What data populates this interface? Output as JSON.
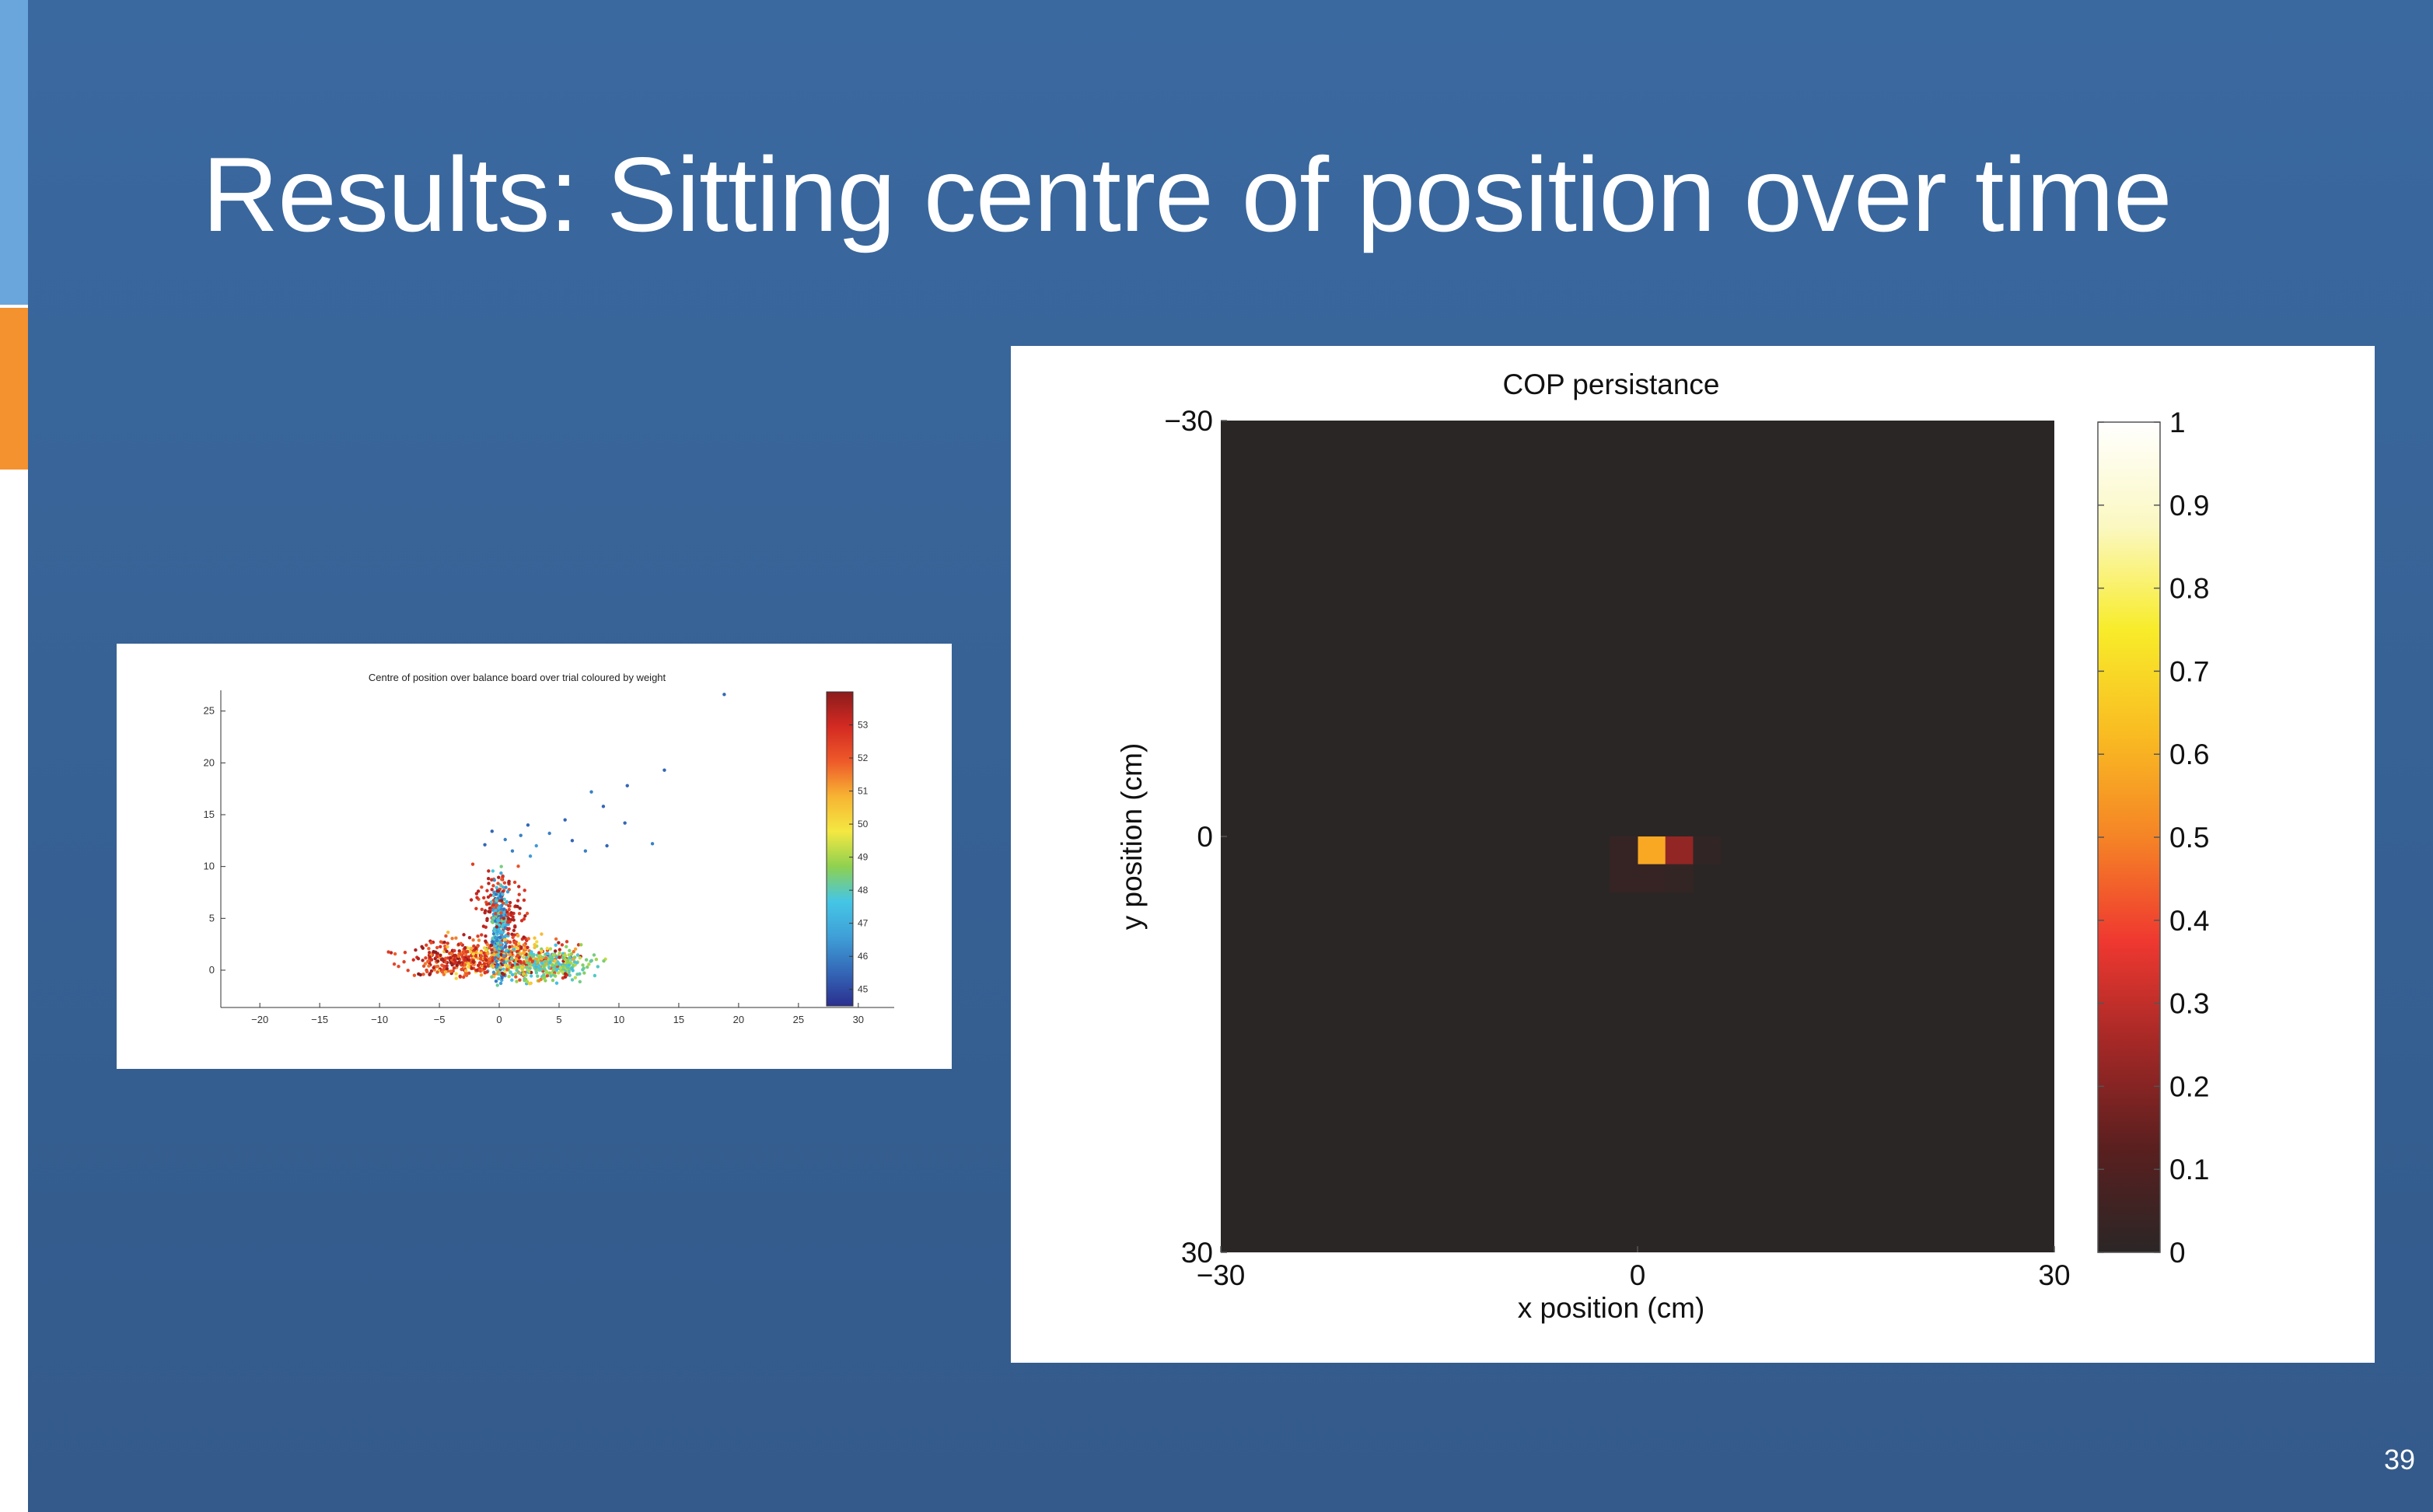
{
  "slide": {
    "title": "Results: Sitting centre of position over time",
    "page_number": "39",
    "colors": {
      "background": "#365f93",
      "accent_blue": "#6aa6dc",
      "accent_orange": "#f3922f",
      "text": "#ffffff"
    }
  },
  "chart_data": [
    {
      "type": "scatter",
      "title": "Centre of position over balance board over trial coloured by weight",
      "xlabel": "",
      "ylabel": "",
      "xlim": [
        -23,
        33
      ],
      "ylim": [
        -3,
        27
      ],
      "x_ticks": [
        "−20",
        "−15",
        "−10",
        "−5",
        "0",
        "5",
        "10",
        "15",
        "20",
        "25",
        "30"
      ],
      "y_ticks": [
        "0",
        "5",
        "10",
        "15",
        "20",
        "25"
      ],
      "colorbar": {
        "range": [
          44.5,
          54
        ],
        "ticks": [
          "45",
          "46",
          "47",
          "48",
          "49",
          "50",
          "51",
          "52",
          "53"
        ],
        "colormap": "jet"
      },
      "colormap_colors": [
        "#2b2f8f",
        "#3469b8",
        "#3fa0d8",
        "#45c6e6",
        "#8fd14f",
        "#f4e842",
        "#f7b433",
        "#ee5a2a",
        "#d42a22",
        "#8b1c1c"
      ],
      "points": [
        {
          "x": 18.8,
          "y": 26.6,
          "c": 45.5
        },
        {
          "x": 13.8,
          "y": 19.3,
          "c": 45.5
        },
        {
          "x": 10.7,
          "y": 17.8,
          "c": 45.5
        },
        {
          "x": 12.8,
          "y": 12.2,
          "c": 46
        },
        {
          "x": 10.5,
          "y": 14.2,
          "c": 45.5
        },
        {
          "x": 8.7,
          "y": 15.8,
          "c": 45.5
        },
        {
          "x": 7.7,
          "y": 17.2,
          "c": 46
        },
        {
          "x": 5.5,
          "y": 14.5,
          "c": 45.5
        },
        {
          "x": 4.2,
          "y": 13.2,
          "c": 46
        },
        {
          "x": 6.1,
          "y": 12.5,
          "c": 45.5
        },
        {
          "x": 2.4,
          "y": 14.0,
          "c": 45.5
        },
        {
          "x": 1.8,
          "y": 13.0,
          "c": 46
        },
        {
          "x": 3.1,
          "y": 12.0,
          "c": 46.5
        },
        {
          "x": -0.6,
          "y": 13.4,
          "c": 45.5
        },
        {
          "x": 0.5,
          "y": 12.6,
          "c": 46
        },
        {
          "x": -1.2,
          "y": 12.1,
          "c": 45.5
        },
        {
          "x": 1.1,
          "y": 11.5,
          "c": 46
        },
        {
          "x": 2.6,
          "y": 11.0,
          "c": 46.5
        },
        {
          "x": 9.0,
          "y": 12.0,
          "c": 45.5
        },
        {
          "x": 7.2,
          "y": 11.5,
          "c": 46
        }
      ]
    },
    {
      "type": "heatmap",
      "title": "COP persistance",
      "xlabel": "x position (cm)",
      "ylabel": "y position (cm)",
      "xlim": [
        -30,
        30
      ],
      "ylim": [
        -30,
        30
      ],
      "x_ticks": [
        "−30",
        "0",
        "30"
      ],
      "y_ticks": [
        "−30",
        "0",
        "30"
      ],
      "colorbar": {
        "range": [
          0,
          1
        ],
        "ticks": [
          "0",
          "0.1",
          "0.2",
          "0.3",
          "0.4",
          "0.5",
          "0.6",
          "0.7",
          "0.8",
          "0.9",
          "1"
        ],
        "colormap": "hot"
      },
      "grid_size": 30,
      "base_value": 0.0,
      "cells": [
        {
          "col": 15,
          "row": 15,
          "v": 0.58
        },
        {
          "col": 16,
          "row": 15,
          "v": 0.22
        },
        {
          "col": 14,
          "row": 15,
          "v": 0.03
        },
        {
          "col": 17,
          "row": 15,
          "v": 0.015
        },
        {
          "col": 14,
          "row": 16,
          "v": 0.03
        },
        {
          "col": 15,
          "row": 16,
          "v": 0.03
        },
        {
          "col": 16,
          "row": 16,
          "v": 0.025
        }
      ]
    }
  ]
}
